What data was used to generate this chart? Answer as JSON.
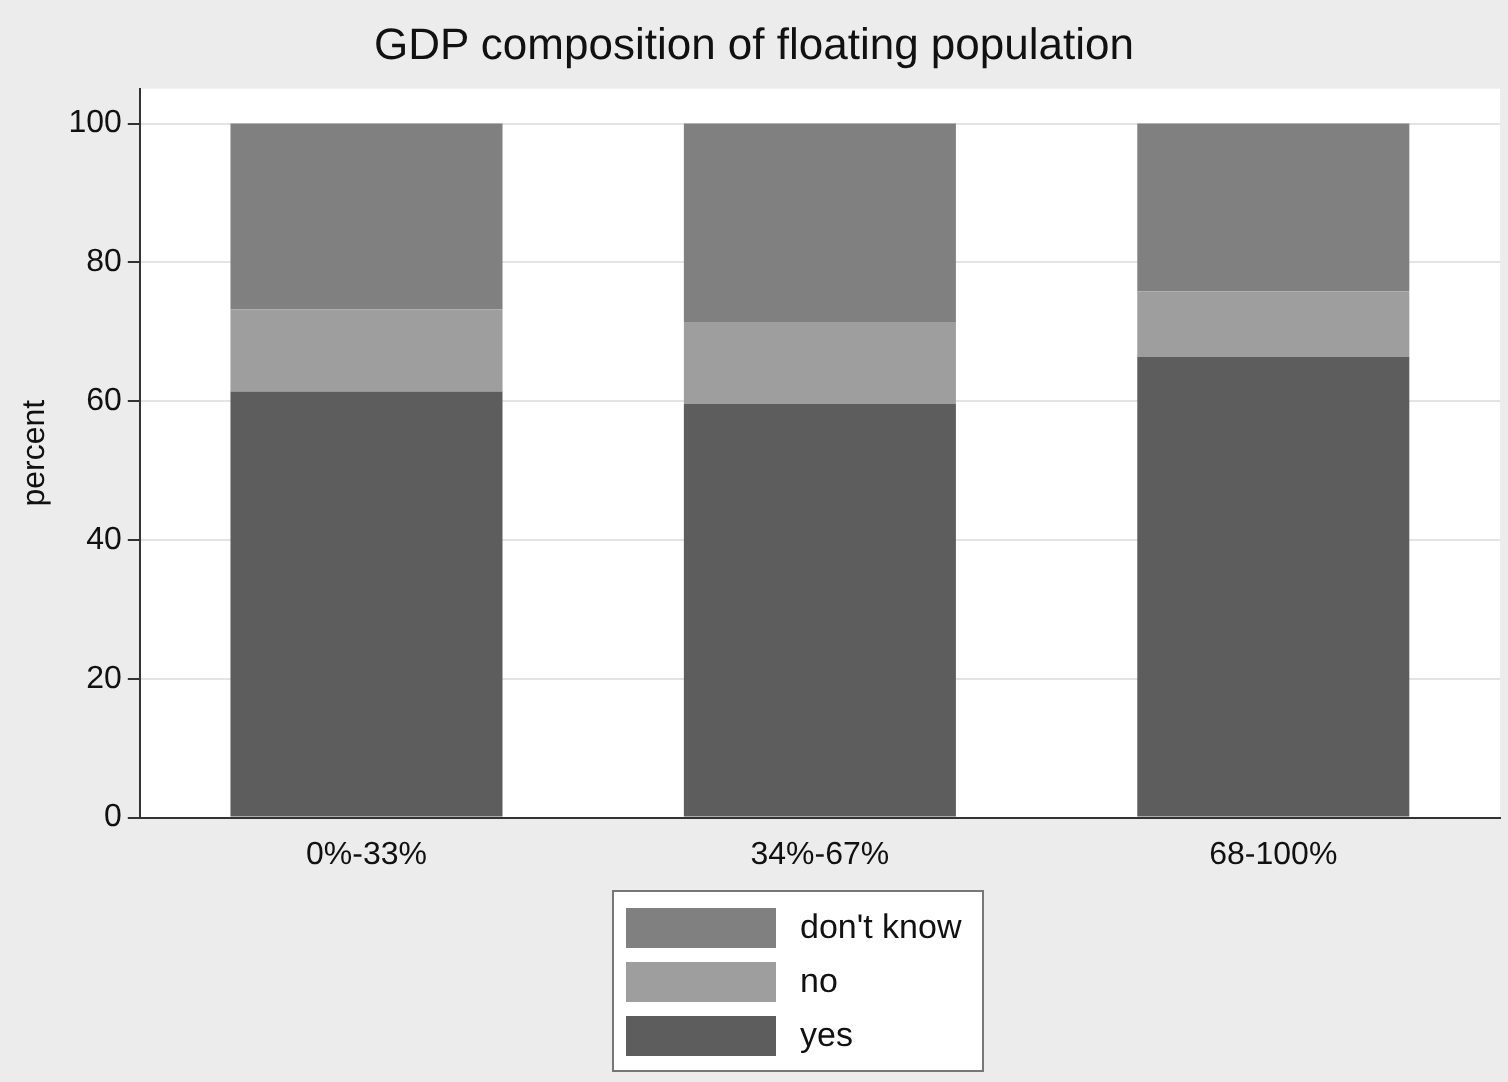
{
  "chart_data": {
    "type": "bar",
    "title": "GDP composition of floating population",
    "ylabel": "percent",
    "categories": [
      "0%-33%",
      "34%-67%",
      "68-100%"
    ],
    "stacked": true,
    "series": [
      {
        "name": "yes",
        "color": "#5d5d5d",
        "values": [
          61.4,
          59.6,
          66.4
        ]
      },
      {
        "name": "no",
        "color": "#9e9e9e",
        "values": [
          11.8,
          11.7,
          9.4
        ]
      },
      {
        "name": "don't know",
        "color": "#808080",
        "values": [
          26.8,
          28.7,
          24.2
        ]
      }
    ],
    "ylim": [
      0,
      105
    ],
    "yticks": [
      0,
      20,
      40,
      60,
      80,
      100
    ],
    "grid": "y",
    "legend": "bottom"
  }
}
